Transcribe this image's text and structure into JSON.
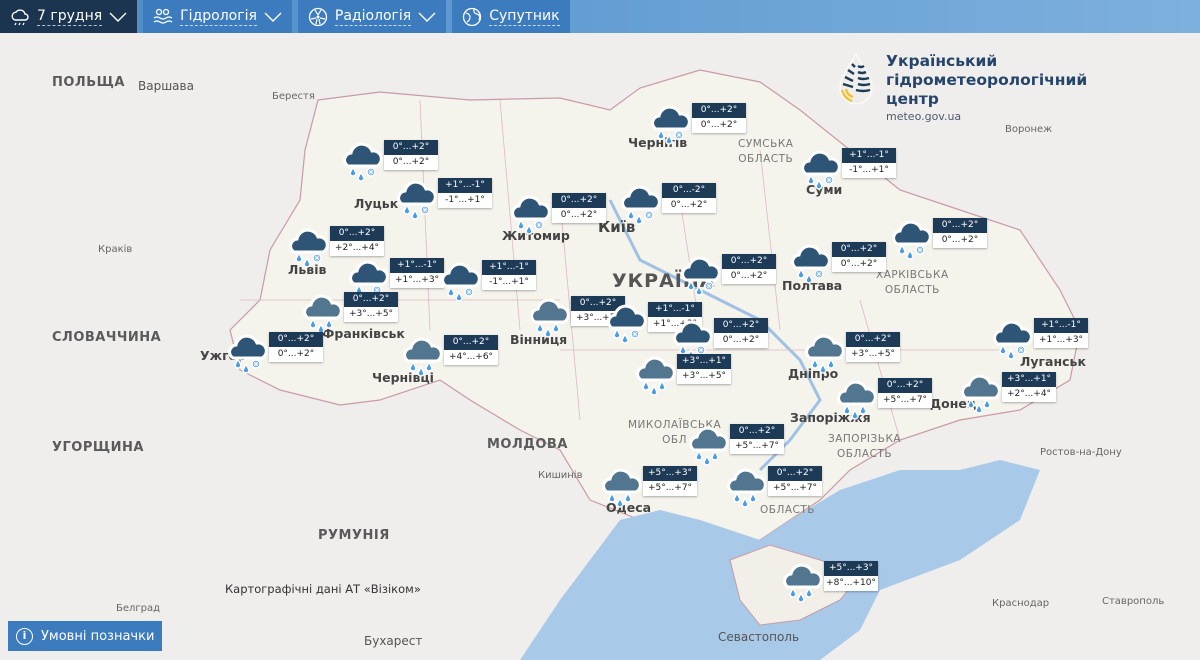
{
  "topbar": {
    "tabs": [
      {
        "label": "7 грудня",
        "icon": "weather-cloud-icon",
        "dropdown": true,
        "active": true
      },
      {
        "label": "Гідрологія",
        "icon": "water-waves-icon",
        "dropdown": true
      },
      {
        "label": "Радіологія",
        "icon": "radiation-icon",
        "dropdown": true
      },
      {
        "label": "Супутник",
        "icon": "globe-icon",
        "dropdown": false
      }
    ]
  },
  "logo": {
    "line1": "Український",
    "line2": "гідрометеорологічний",
    "line3": "центр",
    "url": "meteo.gov.ua"
  },
  "map_labels": {
    "poland": "ПОЛЬЩА",
    "warsaw": "Варшава",
    "brest": "Берестя",
    "krakow": "Краків",
    "slovakia": "СЛОВАЧЧИНА",
    "hungary": "УГОРЩИНА",
    "romania": "РУМУНІЯ",
    "moldova": "МОЛДОВА",
    "ukraine": "УКРАЇНА",
    "lutsk": "Луцьк",
    "lviv": "Львів",
    "zhytomyr": "Житомир",
    "kyiv": "Київ",
    "chernihiv": "Чернігів",
    "sumy_region": "СУМСЬКА\nОБЛАСТЬ",
    "sumy": "Суми",
    "poltava": "Полтава",
    "kharkiv_region": "ХАРКІВСЬКА\nОБЛАСТЬ",
    "voronezh": "Воронеж",
    "vinnytsia": "Вінниця",
    "chernivtsi": "Чернівці",
    "ivano_frankivsk": "Франківськ",
    "uzhhorod": "Ужгор",
    "odesa": "Одеса",
    "dnipro": "Дніпро",
    "zaporizhzhia": "Запоріжжя",
    "zaporizhzhia_region": "ЗАПОРІЗЬКА\nОБЛАСТЬ",
    "mykolaiv_region": "МИКОЛАЇВСЬКА\nОБЛ",
    "kherson_region": "ОБЛАСТЬ",
    "donetsk": "Донец",
    "luhansk": "Луганськ",
    "rostov": "Ростов-на-Дону",
    "krasnodar": "Краснодар",
    "stavropol": "Ставрополь",
    "sevastopol": "Севастополь",
    "bucharest": "Бухарест",
    "belgrade": "Белград",
    "kishinev": "Кишинів"
  },
  "forecasts": [
    {
      "icon": "rain-snow",
      "night": "0°...+2°",
      "day": "0°...+2°"
    },
    {
      "icon": "rain-snow",
      "night": "+1°...-1°",
      "day": "-1°...+1°"
    },
    {
      "icon": "rain-snow",
      "night": "0°...+2°",
      "day": "+2°...+4°"
    },
    {
      "icon": "rain-snow",
      "night": "+1°...-1°",
      "day": "+1°...+3°"
    },
    {
      "icon": "rain-snow",
      "night": "+1°...-1°",
      "day": "-1°...+1°"
    },
    {
      "icon": "rain",
      "night": "0°...+2°",
      "day": "+3°...+5°"
    },
    {
      "icon": "rain-snow",
      "night": "0°...+2°",
      "day": "0°...+2°"
    },
    {
      "icon": "rain",
      "night": "0°...+2°",
      "day": "+4°...+6°"
    },
    {
      "icon": "rain-snow",
      "night": "0°...+2°",
      "day": "0°...+2°"
    },
    {
      "icon": "rain-snow",
      "night": "0°...-2°",
      "day": "0°...+2°"
    },
    {
      "icon": "rain-snow",
      "night": "0°...+2°",
      "day": "0°...+2°"
    },
    {
      "icon": "rain-snow",
      "night": "+1°...-1°",
      "day": "-1°...+1°"
    },
    {
      "icon": "rain-snow",
      "night": "0°...+2°",
      "day": "0°...+2°"
    },
    {
      "icon": "rain-snow",
      "night": "0°...+2°",
      "day": "0°...+2°"
    },
    {
      "icon": "rain",
      "night": "0°...+2°",
      "day": "+3°...+5°"
    },
    {
      "icon": "rain-snow",
      "night": "+1°...-1°",
      "day": "+1°...+3°"
    },
    {
      "icon": "rain-snow",
      "night": "0°...+2°",
      "day": "0°...+2°"
    },
    {
      "icon": "rain",
      "night": "+3°...+1°",
      "day": "+3°...+5°"
    },
    {
      "icon": "rain-snow",
      "night": "0°...+2°",
      "day": "0°...+2°"
    },
    {
      "icon": "rain",
      "night": "0°...+2°",
      "day": "+3°...+5°"
    },
    {
      "icon": "rain",
      "night": "0°...+2°",
      "day": "+5°...+7°"
    },
    {
      "icon": "rain",
      "night": "+3°...+1°",
      "day": "+2°...+4°"
    },
    {
      "icon": "rain-snow",
      "night": "+1°...-1°",
      "day": "+1°...+3°"
    },
    {
      "icon": "rain",
      "night": "0°...+2°",
      "day": "+5°...+7°"
    },
    {
      "icon": "rain",
      "night": "+5°...+3°",
      "day": "+5°...+7°"
    },
    {
      "icon": "rain",
      "night": "0°...+2°",
      "day": "+5°...+7°"
    },
    {
      "icon": "rain",
      "night": "+5°...+3°",
      "day": "+8°...+10°"
    }
  ],
  "attribution": "Картографічні дані АТ «Візіком»",
  "legend_button": {
    "label": "Умовні позначки",
    "icon": "info-icon"
  },
  "colors": {
    "tab": "#3c7cbe",
    "tab_active": "#1b3450",
    "temp_night_bg": "#1d3a57",
    "sea": "#a9c9e9",
    "cloud_dark": "#2f5576",
    "cloud_light": "#52768f",
    "drop": "#4a9be8"
  }
}
